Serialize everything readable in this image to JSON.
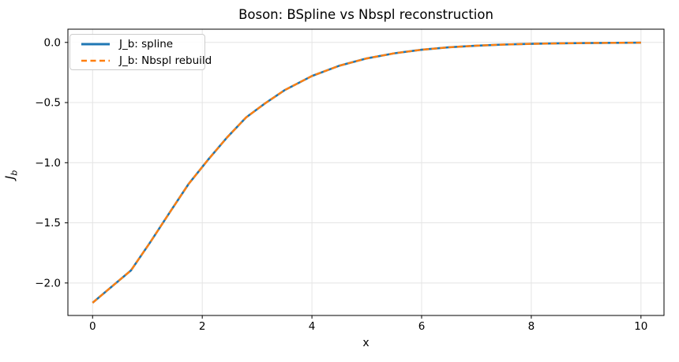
{
  "title": "Boson: BSpline vs Nbspl reconstruction",
  "axes": {
    "xlabel": "x",
    "ylabel_main": "J",
    "ylabel_sub": "b"
  },
  "legend": {
    "position": "upper left",
    "items": [
      {
        "label": "J_b: spline",
        "color": "#1f77b4",
        "style": "solid"
      },
      {
        "label": "J_b: Nbspl rebuild",
        "color": "#ff7f0e",
        "style": "dashed"
      }
    ]
  },
  "colors": {
    "series_blue": "#1f77b4",
    "series_orange": "#ff7f0e",
    "grid": "#e4e4e4",
    "spine": "#000000",
    "background": "#ffffff"
  },
  "chart_data": {
    "type": "line",
    "title": "Boson: BSpline vs Nbspl reconstruction",
    "xlabel": "x",
    "ylabel": "J_b",
    "grid": true,
    "legend_position": "upper left",
    "xlim": [
      -0.45,
      10.42
    ],
    "ylim": [
      -2.27,
      0.11
    ],
    "xticks": {
      "values": [
        0,
        2,
        4,
        6,
        8,
        10
      ],
      "labels": [
        "0",
        "2",
        "4",
        "6",
        "8",
        "10"
      ]
    },
    "yticks": {
      "values": [
        0.0,
        -0.5,
        -1.0,
        -1.5,
        -2.0
      ],
      "labels": [
        "0.0",
        "−0.5",
        "−1.0",
        "−1.5",
        "−2.0"
      ]
    },
    "x": [
      0,
      0.7,
      1.05,
      1.4,
      1.75,
      2.1,
      2.45,
      2.8,
      3.15,
      3.5,
      4.0,
      4.5,
      5.0,
      5.5,
      6.0,
      6.5,
      7.0,
      7.5,
      8.0,
      8.5,
      9.0,
      9.5,
      10.0
    ],
    "series": [
      {
        "name": "J_b: spline",
        "color": "#1f77b4",
        "line_style": "solid",
        "line_width": 2.6,
        "values": [
          -2.1646,
          -1.8953,
          -1.6623,
          -1.4179,
          -1.1775,
          -0.9785,
          -0.7911,
          -0.6235,
          -0.5051,
          -0.3975,
          -0.2792,
          -0.1936,
          -0.1329,
          -0.0907,
          -0.0609,
          -0.0406,
          -0.0272,
          -0.0178,
          -0.0119,
          -0.0079,
          -0.0051,
          -0.0033,
          -0.0022
        ]
      },
      {
        "name": "J_b: Nbspl rebuild",
        "color": "#ff7f0e",
        "line_style": "dashed",
        "line_width": 2.4,
        "values": [
          -2.1646,
          -1.8953,
          -1.6623,
          -1.4179,
          -1.1775,
          -0.9785,
          -0.7911,
          -0.6235,
          -0.5051,
          -0.3975,
          -0.2792,
          -0.1936,
          -0.1329,
          -0.0907,
          -0.0609,
          -0.0406,
          -0.0272,
          -0.0178,
          -0.0119,
          -0.0079,
          -0.0051,
          -0.0033,
          -0.0022
        ]
      }
    ]
  }
}
